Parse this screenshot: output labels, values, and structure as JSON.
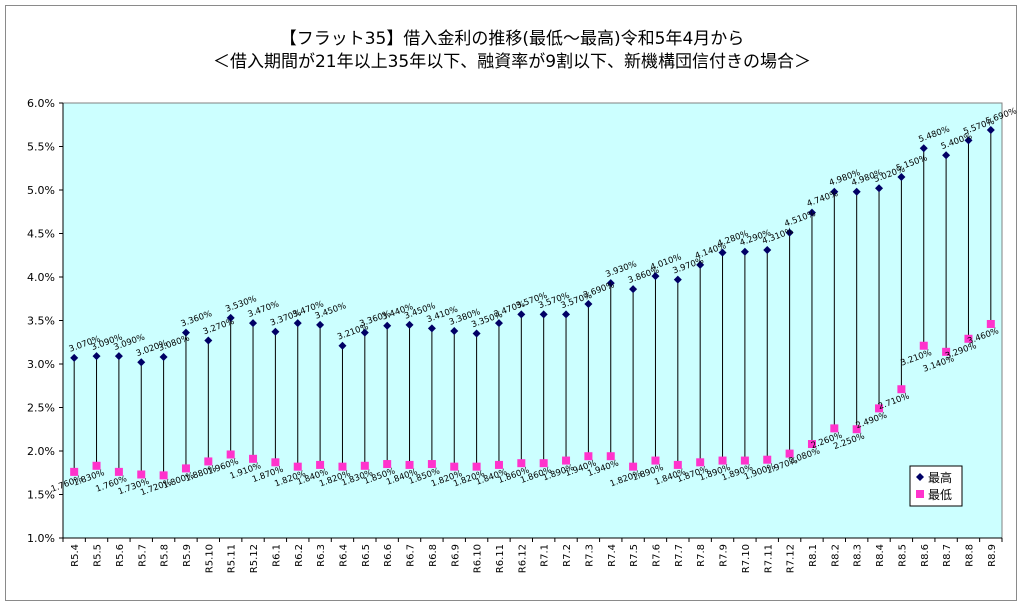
{
  "chart_data": {
    "type": "line",
    "title": "【フラット35】借入金利の推移(最低～最高)令和5年4月から",
    "subtitle": "＜借入期間が21年以上35年以下、融資率が9割以下、新機構団信付きの場合＞",
    "xlabel": "",
    "ylabel": "",
    "ylim": [
      1.0,
      6.0
    ],
    "yticks": [
      "1.0%",
      "1.5%",
      "2.0%",
      "2.5%",
      "3.0%",
      "3.5%",
      "4.0%",
      "4.5%",
      "5.0%",
      "5.5%",
      "6.0%"
    ],
    "categories": [
      "R5.4",
      "R5.5",
      "R5.6",
      "R5.7",
      "R5.8",
      "R5.9",
      "R5.10",
      "R5.11",
      "R5.12",
      "R6.1",
      "R6.2",
      "R6.3",
      "R6.4",
      "R6.5",
      "R6.6",
      "R6.7",
      "R6.8",
      "R6.9",
      "R6.10",
      "R6.11",
      "R6.12",
      "R7.1",
      "R7.2",
      "R7.3",
      "R7.4",
      "R7.5",
      "R7.6",
      "R7.7",
      "R7.8",
      "R7.9",
      "R7.10",
      "R7.11",
      "R7.12",
      "R8.1",
      "R8.2",
      "R8.3",
      "R8.4",
      "R8.5",
      "R8.6",
      "R8.7",
      "R8.8",
      "R8.9"
    ],
    "series": [
      {
        "name": "最高",
        "color": "#000066",
        "marker": "diamond",
        "values": [
          3.07,
          3.09,
          3.09,
          3.02,
          3.08,
          3.36,
          3.27,
          3.53,
          3.47,
          3.37,
          3.47,
          3.45,
          3.21,
          3.36,
          3.44,
          3.45,
          3.41,
          3.38,
          3.35,
          3.47,
          3.57,
          3.57,
          3.57,
          3.69,
          3.93,
          3.86,
          4.01,
          3.97,
          4.14,
          4.28,
          4.29,
          4.31,
          4.51,
          4.74,
          4.98,
          4.98,
          5.02,
          5.15,
          5.48,
          5.4,
          5.57,
          5.69
        ],
        "labels": [
          "3.070%",
          "3.090%",
          "3.090%",
          "3.020%",
          "3.080%",
          "3.360%",
          "3.270%",
          "3.530%",
          "3.470%",
          "3.370%",
          "3.470%",
          "3.450%",
          "3.210%",
          "3.360%",
          "3.440%",
          "3.450%",
          "3.410%",
          "3.380%",
          "3.350%",
          "3.470%",
          "3.570%",
          "3.570%",
          "3.570%",
          "3.690%",
          "3.930%",
          "3.860%",
          "4.010%",
          "3.970%",
          "4.140%",
          "4.280%",
          "4.290%",
          "4.310%",
          "4.510%",
          "4.740%",
          "4.980%",
          "4.980%",
          "5.020%",
          "5.150%",
          "5.480%",
          "5.400%",
          "5.570%",
          "5.690%"
        ]
      },
      {
        "name": "最低",
        "color": "#ff33cc",
        "marker": "square",
        "values": [
          1.76,
          1.83,
          1.76,
          1.73,
          1.72,
          1.8,
          1.88,
          1.96,
          1.91,
          1.87,
          1.82,
          1.84,
          1.82,
          1.83,
          1.85,
          1.84,
          1.85,
          1.82,
          1.82,
          1.84,
          1.86,
          1.86,
          1.89,
          1.94,
          1.94,
          1.82,
          1.89,
          1.84,
          1.87,
          1.89,
          1.89,
          1.9,
          1.97,
          2.08,
          2.26,
          2.25,
          2.49,
          2.71,
          3.21,
          3.14,
          3.29,
          3.46
        ],
        "labels": [
          "1.760%",
          "1.830%",
          "1.760%",
          "1.730%",
          "1.720%",
          "1.800%",
          "1.880%",
          "1.960%",
          "1.910%",
          "1.870%",
          "1.820%",
          "1.840%",
          "1.820%",
          "1.830%",
          "1.850%",
          "1.840%",
          "1.850%",
          "1.820%",
          "1.820%",
          "1.840%",
          "1.860%",
          "1.860%",
          "1.890%",
          "1.940%",
          "1.940%",
          "1.820%",
          "1.890%",
          "1.840%",
          "1.870%",
          "1.890%",
          "1.890%",
          "1.900%",
          "1.970%",
          "2.080%",
          "2.260%",
          "2.250%",
          "2.490%",
          "2.710%",
          "3.210%",
          "3.140%",
          "3.290%",
          "3.460%"
        ]
      }
    ],
    "high_low_lines": true,
    "grid": false,
    "legend_position": "bottom-right",
    "plot_background": "#ccffff"
  }
}
